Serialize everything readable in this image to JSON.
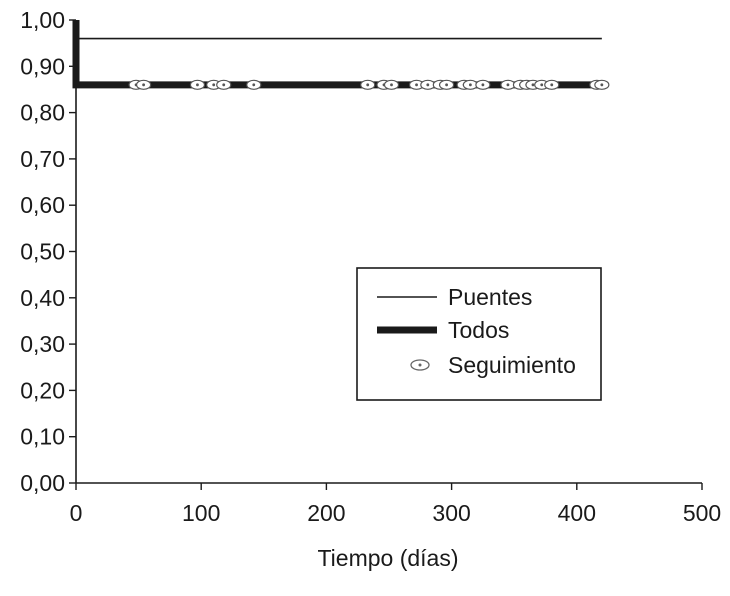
{
  "chart_data": {
    "type": "line",
    "title": "",
    "xlabel": "Tiempo (días)",
    "ylabel": "",
    "xlim": [
      0,
      500
    ],
    "ylim": [
      0,
      1.0
    ],
    "xticks": [
      0,
      100,
      200,
      300,
      400,
      500
    ],
    "xtick_labels": [
      "0",
      "100",
      "200",
      "300",
      "400",
      "500"
    ],
    "yticks": [
      0,
      0.1,
      0.2,
      0.3,
      0.4,
      0.5,
      0.6,
      0.7,
      0.8,
      0.9,
      1.0
    ],
    "ytick_labels": [
      "0,00",
      "0,10",
      "0,20",
      "0,30",
      "0,40",
      "0,50",
      "0,60",
      "0,70",
      "0,80",
      "0,90",
      "1,00"
    ],
    "grid": false,
    "legend_position": "center-right",
    "series": [
      {
        "name": "Puentes",
        "style": "thin-line",
        "color": "#1a1a1a",
        "x": [
          0,
          0,
          420
        ],
        "y": [
          1.0,
          0.96,
          0.96
        ]
      },
      {
        "name": "Todos",
        "style": "thick-line",
        "color": "#1a1a1a",
        "x": [
          0,
          0,
          420
        ],
        "y": [
          1.0,
          0.86,
          0.86
        ]
      }
    ],
    "censored": {
      "name": "Seguimiento",
      "color": "#555555",
      "y": 0.86,
      "x": [
        48,
        54,
        97,
        110,
        118,
        142,
        233,
        246,
        252,
        272,
        281,
        291,
        296,
        310,
        315,
        325,
        345,
        355,
        360,
        365,
        372,
        380,
        416,
        420
      ]
    }
  }
}
